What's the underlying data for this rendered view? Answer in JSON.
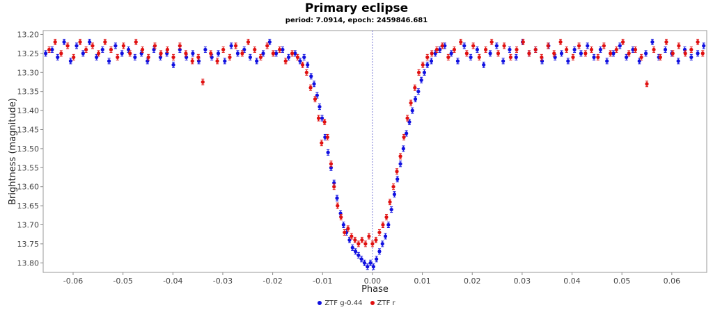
{
  "chart_data": {
    "type": "scatter",
    "title": "Primary eclipse",
    "subtitle": "period: 7.0914, epoch: 2459846.681",
    "xlabel": "Phase",
    "ylabel": "Brightness (magnitude)",
    "xlim": [
      -0.066,
      0.067
    ],
    "ylim": [
      13.19,
      13.825
    ],
    "y_inverted": true,
    "grid": false,
    "error_bars": true,
    "xticks": [
      -0.06,
      -0.05,
      -0.04,
      -0.03,
      -0.02,
      -0.01,
      0.0,
      0.01,
      0.02,
      0.03,
      0.04,
      0.05,
      0.06
    ],
    "xtick_labels": [
      "-0.06",
      "-0.05",
      "-0.04",
      "-0.03",
      "-0.02",
      "-0.01",
      "0.00",
      "0.01",
      "0.02",
      "0.03",
      "0.04",
      "0.05",
      "0.06"
    ],
    "yticks": [
      13.2,
      13.25,
      13.3,
      13.35,
      13.4,
      13.45,
      13.5,
      13.55,
      13.6,
      13.65,
      13.7,
      13.75,
      13.8
    ],
    "ytick_labels": [
      "13.20",
      "13.25",
      "13.30",
      "13.35",
      "13.40",
      "13.45",
      "13.50",
      "13.55",
      "13.60",
      "13.65",
      "13.70",
      "13.75",
      "13.80"
    ],
    "reference_line_x": 0.0,
    "legend_position": "bottom-center",
    "series": [
      {
        "name": "ZTF g-0.44",
        "color": "#1010e0",
        "x": [
          -0.0655,
          -0.0642,
          -0.0631,
          -0.0618,
          -0.0605,
          -0.0593,
          -0.058,
          -0.0567,
          -0.0553,
          -0.0541,
          -0.0528,
          -0.0515,
          -0.0502,
          -0.0489,
          -0.0476,
          -0.0463,
          -0.0451,
          -0.0438,
          -0.0425,
          -0.0412,
          -0.0399,
          -0.0386,
          -0.0373,
          -0.036,
          -0.0348,
          -0.0335,
          -0.0322,
          -0.0309,
          -0.0296,
          -0.0283,
          -0.027,
          -0.0257,
          -0.0245,
          -0.0232,
          -0.0219,
          -0.0206,
          -0.0193,
          -0.018,
          -0.0168,
          -0.0155,
          -0.0145,
          -0.0137,
          -0.013,
          -0.0123,
          -0.0117,
          -0.0111,
          -0.0106,
          -0.0101,
          -0.0095,
          -0.0089,
          -0.0083,
          -0.0077,
          -0.0071,
          -0.0064,
          -0.0058,
          -0.0052,
          -0.0046,
          -0.004,
          -0.0034,
          -0.0028,
          -0.0022,
          -0.0016,
          -0.001,
          -0.0004,
          0.0002,
          0.0008,
          0.0014,
          0.002,
          0.0026,
          0.0032,
          0.0038,
          0.0044,
          0.005,
          0.0056,
          0.0062,
          0.0068,
          0.0074,
          0.008,
          0.0086,
          0.0092,
          0.0098,
          0.0104,
          0.011,
          0.0118,
          0.0126,
          0.0135,
          0.0145,
          0.0158,
          0.0171,
          0.0184,
          0.0197,
          0.021,
          0.0223,
          0.0236,
          0.0249,
          0.0262,
          0.0275,
          0.0288,
          0.0301,
          0.0314,
          0.0327,
          0.034,
          0.0353,
          0.0366,
          0.0379,
          0.0392,
          0.0405,
          0.0418,
          0.0431,
          0.0444,
          0.0457,
          0.047,
          0.0483,
          0.0496,
          0.0509,
          0.0522,
          0.0535,
          0.0548,
          0.0561,
          0.0574,
          0.0587,
          0.06,
          0.0613,
          0.0626,
          0.0639,
          0.0652,
          0.0664
        ],
        "y": [
          13.25,
          13.24,
          13.26,
          13.22,
          13.27,
          13.23,
          13.25,
          13.22,
          13.26,
          13.24,
          13.27,
          13.23,
          13.25,
          13.24,
          13.26,
          13.25,
          13.27,
          13.24,
          13.26,
          13.25,
          13.28,
          13.24,
          13.26,
          13.25,
          13.27,
          13.24,
          13.26,
          13.25,
          13.27,
          13.23,
          13.25,
          13.24,
          13.26,
          13.27,
          13.25,
          13.22,
          13.25,
          13.24,
          13.26,
          13.25,
          13.27,
          13.26,
          13.28,
          13.31,
          13.33,
          13.36,
          13.39,
          13.42,
          13.47,
          13.51,
          13.55,
          13.59,
          13.63,
          13.67,
          13.7,
          13.72,
          13.74,
          13.76,
          13.77,
          13.78,
          13.79,
          13.8,
          13.81,
          13.8,
          13.81,
          13.79,
          13.77,
          13.75,
          13.73,
          13.7,
          13.66,
          13.62,
          13.58,
          13.54,
          13.5,
          13.46,
          13.43,
          13.4,
          13.37,
          13.35,
          13.32,
          13.3,
          13.28,
          13.27,
          13.25,
          13.24,
          13.23,
          13.25,
          13.27,
          13.23,
          13.26,
          13.24,
          13.28,
          13.25,
          13.23,
          13.27,
          13.24,
          13.26,
          13.22,
          13.25,
          13.24,
          13.27,
          13.23,
          13.26,
          13.25,
          13.27,
          13.24,
          13.25,
          13.23,
          13.26,
          13.24,
          13.27,
          13.25,
          13.23,
          13.26,
          13.24,
          13.27,
          13.25,
          13.22,
          13.26,
          13.24,
          13.25,
          13.27,
          13.24,
          13.26,
          13.25,
          13.23
        ]
      },
      {
        "name": "ZTF r",
        "color": "#e01010",
        "x": [
          -0.0648,
          -0.0636,
          -0.0624,
          -0.0611,
          -0.0599,
          -0.0586,
          -0.0574,
          -0.0561,
          -0.0549,
          -0.0536,
          -0.0524,
          -0.0511,
          -0.0499,
          -0.0486,
          -0.0474,
          -0.0461,
          -0.0449,
          -0.0436,
          -0.0424,
          -0.0411,
          -0.0399,
          -0.0386,
          -0.0374,
          -0.0361,
          -0.0349,
          -0.034,
          -0.0324,
          -0.0311,
          -0.0299,
          -0.0286,
          -0.0274,
          -0.0261,
          -0.0249,
          -0.0236,
          -0.0224,
          -0.0211,
          -0.0199,
          -0.0186,
          -0.0174,
          -0.0161,
          -0.015,
          -0.014,
          -0.0132,
          -0.0124,
          -0.0115,
          -0.0108,
          -0.0102,
          -0.0096,
          -0.009,
          -0.0083,
          -0.0077,
          -0.007,
          -0.0063,
          -0.0056,
          -0.0049,
          -0.0042,
          -0.0035,
          -0.0028,
          -0.0021,
          -0.0014,
          -0.0007,
          0.0,
          0.0007,
          0.0014,
          0.0021,
          0.0028,
          0.0035,
          0.0042,
          0.0049,
          0.0056,
          0.0063,
          0.007,
          0.0077,
          0.0085,
          0.0093,
          0.0101,
          0.011,
          0.0119,
          0.0129,
          0.014,
          0.0152,
          0.0164,
          0.0177,
          0.0189,
          0.0202,
          0.0214,
          0.0227,
          0.0239,
          0.0252,
          0.0264,
          0.0277,
          0.0289,
          0.0302,
          0.0314,
          0.0327,
          0.0339,
          0.0352,
          0.0364,
          0.0377,
          0.0389,
          0.0402,
          0.0414,
          0.0427,
          0.0439,
          0.0452,
          0.0464,
          0.0477,
          0.0489,
          0.0502,
          0.0514,
          0.0527,
          0.0539,
          0.055,
          0.0564,
          0.0577,
          0.0589,
          0.0602,
          0.0614,
          0.0627,
          0.0639,
          0.0652,
          0.0662
        ],
        "y": [
          13.24,
          13.22,
          13.25,
          13.23,
          13.26,
          13.22,
          13.24,
          13.23,
          13.25,
          13.22,
          13.24,
          13.26,
          13.23,
          13.25,
          13.22,
          13.24,
          13.26,
          13.23,
          13.25,
          13.24,
          13.26,
          13.23,
          13.25,
          13.27,
          13.26,
          13.325,
          13.25,
          13.27,
          13.24,
          13.26,
          13.23,
          13.25,
          13.22,
          13.24,
          13.26,
          13.23,
          13.25,
          13.24,
          13.27,
          13.25,
          13.26,
          13.28,
          13.3,
          13.34,
          13.37,
          13.42,
          13.485,
          13.43,
          13.47,
          13.54,
          13.6,
          13.65,
          13.68,
          13.72,
          13.71,
          13.73,
          13.74,
          13.75,
          13.74,
          13.75,
          13.73,
          13.75,
          13.74,
          13.72,
          13.7,
          13.68,
          13.64,
          13.6,
          13.56,
          13.52,
          13.47,
          13.42,
          13.38,
          13.34,
          13.3,
          13.28,
          13.26,
          13.25,
          13.24,
          13.23,
          13.26,
          13.24,
          13.22,
          13.25,
          13.23,
          13.26,
          13.24,
          13.22,
          13.25,
          13.23,
          13.26,
          13.24,
          13.22,
          13.25,
          13.24,
          13.26,
          13.23,
          13.25,
          13.22,
          13.24,
          13.26,
          13.23,
          13.25,
          13.24,
          13.26,
          13.23,
          13.25,
          13.24,
          13.22,
          13.25,
          13.24,
          13.26,
          13.33,
          13.24,
          13.26,
          13.22,
          13.25,
          13.23,
          13.25,
          13.24,
          13.22,
          13.25
        ]
      }
    ]
  }
}
